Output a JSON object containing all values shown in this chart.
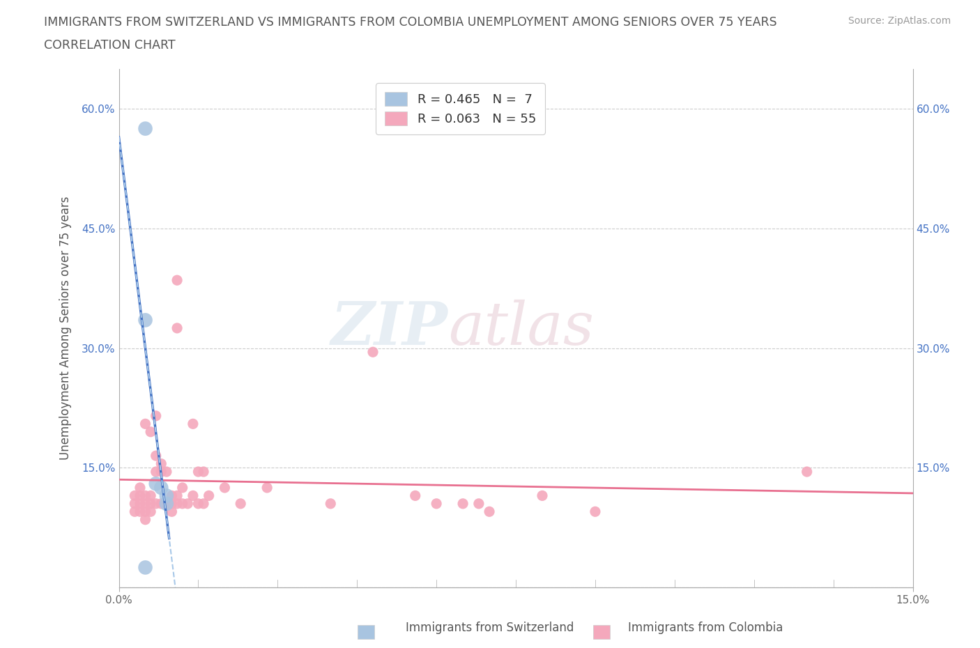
{
  "title_line1": "IMMIGRANTS FROM SWITZERLAND VS IMMIGRANTS FROM COLOMBIA UNEMPLOYMENT AMONG SENIORS OVER 75 YEARS",
  "title_line2": "CORRELATION CHART",
  "source": "Source: ZipAtlas.com",
  "ylabel": "Unemployment Among Seniors over 75 years",
  "xlim": [
    0.0,
    15.0
  ],
  "ylim": [
    0.0,
    65.0
  ],
  "xticks": [
    0.0,
    15.0
  ],
  "xtick_labels": [
    "0.0%",
    "15.0%"
  ],
  "yticks": [
    0.0,
    15.0,
    30.0,
    45.0,
    60.0
  ],
  "ytick_labels": [
    "",
    "15.0%",
    "30.0%",
    "45.0%",
    "60.0%"
  ],
  "swiss_color": "#a8c4e0",
  "swiss_trend_color": "#4472c4",
  "swiss_trend_dashed_color": "#a8c8e8",
  "colombia_color": "#f4a8bc",
  "colombia_trend_color": "#e87090",
  "legend_R_swiss": "R = 0.465",
  "legend_N_swiss": "N =  7",
  "legend_R_colombia": "R = 0.063",
  "legend_N_colombia": "N = 55",
  "watermark_text": "ZIP",
  "watermark_text2": "atlas",
  "swiss_points": [
    [
      0.5,
      57.5
    ],
    [
      0.5,
      33.5
    ],
    [
      0.5,
      2.5
    ],
    [
      0.7,
      13.0
    ],
    [
      0.8,
      12.5
    ],
    [
      0.9,
      11.5
    ],
    [
      0.9,
      10.5
    ]
  ],
  "colombia_points": [
    [
      0.3,
      11.5
    ],
    [
      0.3,
      10.5
    ],
    [
      0.3,
      9.5
    ],
    [
      0.4,
      12.5
    ],
    [
      0.4,
      11.5
    ],
    [
      0.4,
      10.5
    ],
    [
      0.4,
      9.5
    ],
    [
      0.5,
      20.5
    ],
    [
      0.5,
      11.5
    ],
    [
      0.5,
      10.5
    ],
    [
      0.5,
      9.5
    ],
    [
      0.5,
      8.5
    ],
    [
      0.6,
      19.5
    ],
    [
      0.6,
      11.5
    ],
    [
      0.6,
      10.5
    ],
    [
      0.6,
      9.5
    ],
    [
      0.7,
      21.5
    ],
    [
      0.7,
      16.5
    ],
    [
      0.7,
      14.5
    ],
    [
      0.7,
      10.5
    ],
    [
      0.8,
      15.5
    ],
    [
      0.8,
      14.5
    ],
    [
      0.8,
      10.5
    ],
    [
      0.9,
      14.5
    ],
    [
      0.9,
      10.5
    ],
    [
      1.0,
      11.5
    ],
    [
      1.0,
      10.5
    ],
    [
      1.0,
      9.5
    ],
    [
      1.1,
      38.5
    ],
    [
      1.1,
      32.5
    ],
    [
      1.1,
      11.5
    ],
    [
      1.1,
      10.5
    ],
    [
      1.2,
      12.5
    ],
    [
      1.2,
      10.5
    ],
    [
      1.3,
      10.5
    ],
    [
      1.4,
      20.5
    ],
    [
      1.4,
      11.5
    ],
    [
      1.5,
      14.5
    ],
    [
      1.5,
      10.5
    ],
    [
      1.6,
      14.5
    ],
    [
      1.6,
      10.5
    ],
    [
      1.7,
      11.5
    ],
    [
      2.0,
      12.5
    ],
    [
      2.3,
      10.5
    ],
    [
      2.8,
      12.5
    ],
    [
      4.0,
      10.5
    ],
    [
      4.8,
      29.5
    ],
    [
      5.6,
      11.5
    ],
    [
      6.0,
      10.5
    ],
    [
      6.5,
      10.5
    ],
    [
      6.8,
      10.5
    ],
    [
      7.0,
      9.5
    ],
    [
      8.0,
      11.5
    ],
    [
      9.0,
      9.5
    ],
    [
      13.0,
      14.5
    ]
  ]
}
